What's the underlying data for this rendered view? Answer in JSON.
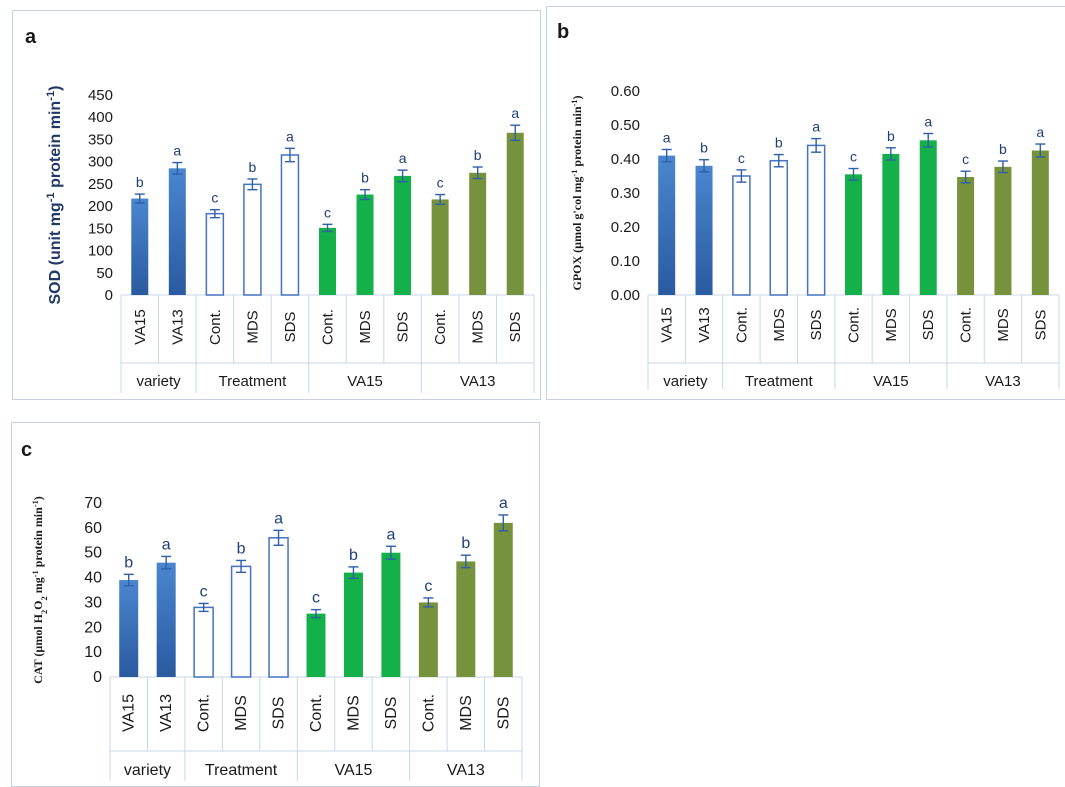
{
  "colors": {
    "variety_fill_top": "#4a86cf",
    "variety_fill_bottom": "#2a5aa0",
    "treatment_fill": "#ffffff",
    "treatment_stroke": "#4472c4",
    "va15_fill": "#14b04a",
    "va13_fill": "#76923c",
    "error_bar": "#2f5fa7",
    "letter": "#1f3f7a",
    "grid_line": "#c9d7ea",
    "text": "#1a1a1a",
    "ylabel": "#1f3864"
  },
  "chart_data": [
    {
      "panel_label": "a",
      "type": "bar",
      "ylabel_parts": [
        "SOD (unit mg",
        "-1",
        " protein min",
        "-1",
        ")"
      ],
      "ylim": [
        0,
        450
      ],
      "yticks": [
        "0",
        "50",
        "100",
        "150",
        "200",
        "250",
        "300",
        "350",
        "400",
        "450"
      ],
      "groups": [
        "variety",
        "Treatment",
        "VA15",
        "VA13"
      ],
      "group_sizes": [
        2,
        3,
        3,
        3
      ],
      "categories": [
        "VA15",
        "VA13",
        "Cont.",
        "MDS",
        "SDS",
        "Cont.",
        "MDS",
        "SDS",
        "Cont.",
        "MDS",
        "SDS"
      ],
      "values": [
        217,
        285,
        183,
        249,
        315,
        151,
        226,
        268,
        215,
        275,
        365
      ],
      "errors": [
        10,
        13,
        9,
        12,
        15,
        8,
        11,
        13,
        11,
        13,
        17
      ],
      "letters": [
        "b",
        "a",
        "c",
        "b",
        "a",
        "c",
        "b",
        "a",
        "c",
        "b",
        "a"
      ]
    },
    {
      "panel_label": "b",
      "type": "bar",
      "ylabel_parts": [
        "GPOX (µmol g'col mg",
        "-1",
        " protein min",
        "-1",
        ")"
      ],
      "ylim": [
        0,
        0.6
      ],
      "yticks": [
        "0.00",
        "0.10",
        "0.20",
        "0.30",
        "0.40",
        "0.50",
        "0.60"
      ],
      "groups": [
        "variety",
        "Treatment",
        "VA15",
        "VA13"
      ],
      "group_sizes": [
        2,
        3,
        3,
        3
      ],
      "categories": [
        "VA15",
        "VA13",
        "Cont.",
        "MDS",
        "SDS",
        "Cont.",
        "MDS",
        "SDS",
        "Cont.",
        "MDS",
        "SDS"
      ],
      "values": [
        0.41,
        0.38,
        0.35,
        0.395,
        0.44,
        0.355,
        0.415,
        0.455,
        0.347,
        0.377,
        0.425
      ],
      "errors": [
        0.018,
        0.018,
        0.018,
        0.018,
        0.02,
        0.017,
        0.018,
        0.02,
        0.017,
        0.017,
        0.019
      ],
      "letters": [
        "a",
        "b",
        "c",
        "b",
        "a",
        "c",
        "b",
        "a",
        "c",
        "b",
        "a"
      ]
    },
    {
      "panel_label": "c",
      "type": "bar",
      "ylabel_parts": [
        "CAT (µmol H",
        "2",
        "O",
        "2",
        " mg",
        "-1",
        " protein min",
        "-1",
        ")"
      ],
      "ylim": [
        0,
        70
      ],
      "yticks": [
        "0",
        "10",
        "20",
        "30",
        "40",
        "50",
        "60",
        "70"
      ],
      "groups": [
        "variety",
        "Treatment",
        "VA15",
        "VA13"
      ],
      "group_sizes": [
        2,
        3,
        3,
        3
      ],
      "categories": [
        "VA15",
        "VA13",
        "Cont.",
        "MDS",
        "SDS",
        "Cont.",
        "MDS",
        "SDS",
        "Cont.",
        "MDS",
        "SDS"
      ],
      "values": [
        39,
        46,
        28,
        44.5,
        56,
        25.5,
        42,
        50,
        30,
        46.5,
        62
      ],
      "errors": [
        2.3,
        2.5,
        1.6,
        2.4,
        3,
        1.6,
        2.3,
        2.6,
        1.8,
        2.5,
        3.2
      ],
      "letters": [
        "b",
        "a",
        "c",
        "b",
        "a",
        "c",
        "b",
        "a",
        "c",
        "b",
        "a"
      ]
    }
  ]
}
